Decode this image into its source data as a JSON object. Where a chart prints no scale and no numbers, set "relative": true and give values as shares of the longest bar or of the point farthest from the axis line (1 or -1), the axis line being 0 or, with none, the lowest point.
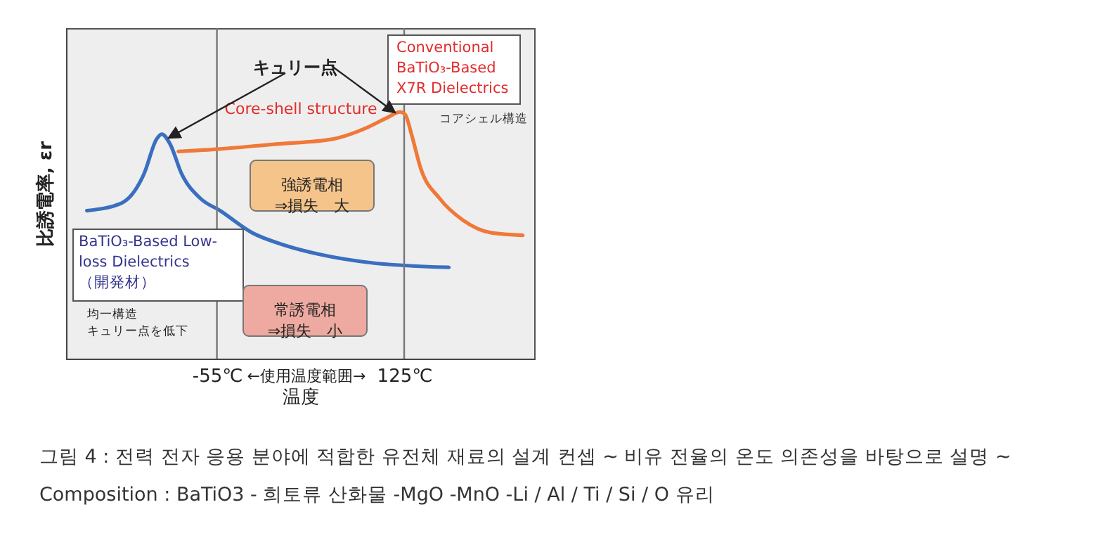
{
  "chart_data": {
    "type": "line",
    "relative": true,
    "xlabel": "温度",
    "ylabel": "比誘電率, εr",
    "xlim": [
      -200,
      250
    ],
    "xticks": [
      {
        "value": -55,
        "label": "-55℃"
      },
      {
        "value": 125,
        "label": "125℃"
      }
    ],
    "series": [
      {
        "name": "BaTiO₃-Based Low-\nloss Dielectrics\n（開発材）",
        "color": "#3a6fc0",
        "x": [
          -180,
          -147,
          -125,
          -113,
          -108,
          -100,
          -89,
          -71,
          -52,
          -21,
          10,
          47,
          91,
          168
        ],
        "values": [
          0.6,
          0.63,
          0.75,
          0.89,
          0.91,
          0.87,
          0.75,
          0.65,
          0.6,
          0.51,
          0.46,
          0.42,
          0.39,
          0.37
        ]
      },
      {
        "name": "Conventional\nBaTiO₃-Based\nX7R Dielectrics",
        "color": "#f07838",
        "x": [
          -92,
          -52,
          2,
          56,
          91,
          110,
          121,
          126,
          132,
          141,
          159,
          182,
          209,
          239
        ],
        "values": [
          0.84,
          0.85,
          0.87,
          0.89,
          0.94,
          0.98,
          1.0,
          0.99,
          0.91,
          0.77,
          0.65,
          0.56,
          0.51,
          0.5
        ]
      }
    ],
    "ref_lines": [
      {
        "axis": "x",
        "value": -55,
        "color": "#777777"
      },
      {
        "axis": "x",
        "value": 125,
        "color": "#777777"
      }
    ],
    "grid": false,
    "annotations": [
      "キュリー点",
      "Core-shell structure",
      "コアシェル構造",
      "強誘電相\n⇒損失　大",
      "常誘電相\n⇒損失　小",
      "均一構造",
      "キュリー点を低下",
      "←使用温度範囲→",
      "그림 4 : 전력 전자 응용 분야에 적합한 유전체 재료의 설계 컨셉 ~ 비유 전율의 온도 의존성을 바탕으로 설명 ~",
      "Composition : BaTiO3 - 희토류 산화물 -MgO -MnO -Li / Al / Ti / Si / O 유리"
    ]
  }
}
